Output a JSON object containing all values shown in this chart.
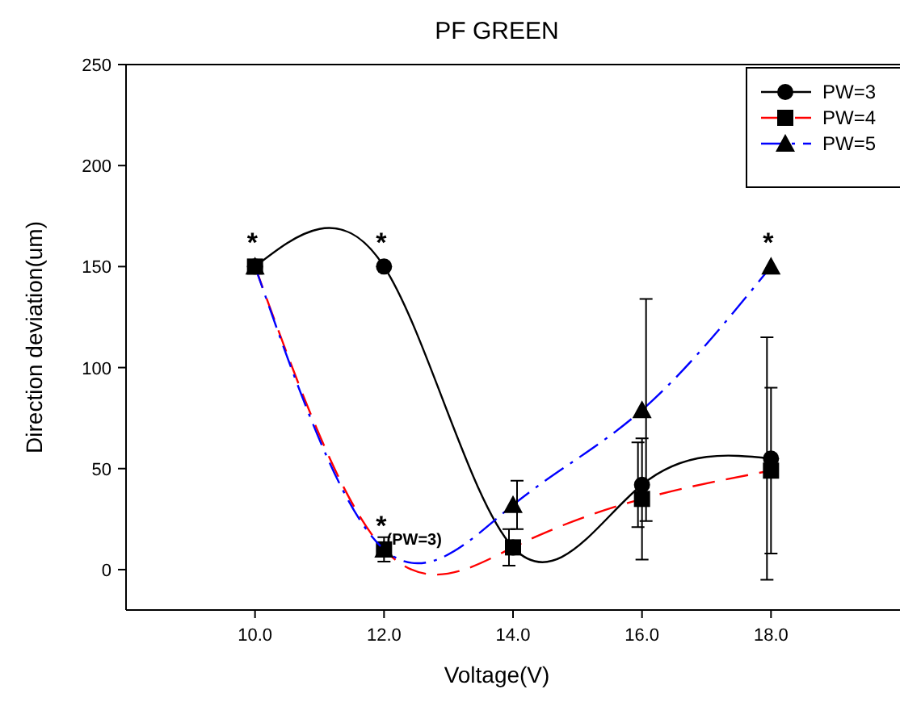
{
  "chart_data": {
    "type": "line",
    "title": "PF GREEN",
    "xlabel": "Voltage(V)",
    "ylabel": "Direction deviation(um)",
    "x": [
      10,
      12,
      14,
      16,
      18
    ],
    "series": [
      {
        "name": "PW=3",
        "color": "#000000",
        "values": [
          150,
          150,
          11,
          42,
          55
        ],
        "errors": [
          null,
          null,
          9,
          21,
          60
        ],
        "marker": "circle",
        "line_style": "solid"
      },
      {
        "name": "PW=4",
        "color": "#ff0000",
        "values": [
          150,
          10,
          11,
          35,
          49
        ],
        "errors": [
          null,
          6,
          null,
          30,
          41
        ],
        "marker": "square",
        "line_style": "dashed"
      },
      {
        "name": "PW=5",
        "color": "#0000ff",
        "values": [
          150,
          10,
          32,
          79,
          150
        ],
        "errors": [
          null,
          null,
          12,
          55,
          null
        ],
        "marker": "triangle",
        "line_style": "dotted"
      }
    ],
    "xlim": [
      8,
      20
    ],
    "ylim": [
      -20,
      250
    ],
    "xticks": [
      {
        "value": 10,
        "label": "10.0"
      },
      {
        "value": 12,
        "label": "12.0"
      },
      {
        "value": 14,
        "label": "14.0"
      },
      {
        "value": 16,
        "label": "16.0"
      },
      {
        "value": 18,
        "label": "18.0"
      }
    ],
    "yticks": [
      0,
      50,
      100,
      150,
      200,
      250
    ],
    "grid": false,
    "legend": "top right",
    "annotations": [
      {
        "text": "*",
        "x": 10,
        "y": 150
      },
      {
        "text": "*",
        "x": 12,
        "y": 150
      },
      {
        "text": "*$_{(PW=3)}$",
        "x": 12,
        "y": 10
      },
      {
        "text": "*",
        "x": 18,
        "y": 150
      }
    ]
  }
}
